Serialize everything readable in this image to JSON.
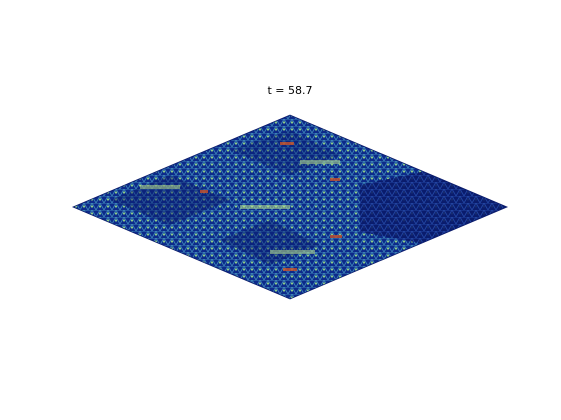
{
  "title": "t = 58.7"
}
